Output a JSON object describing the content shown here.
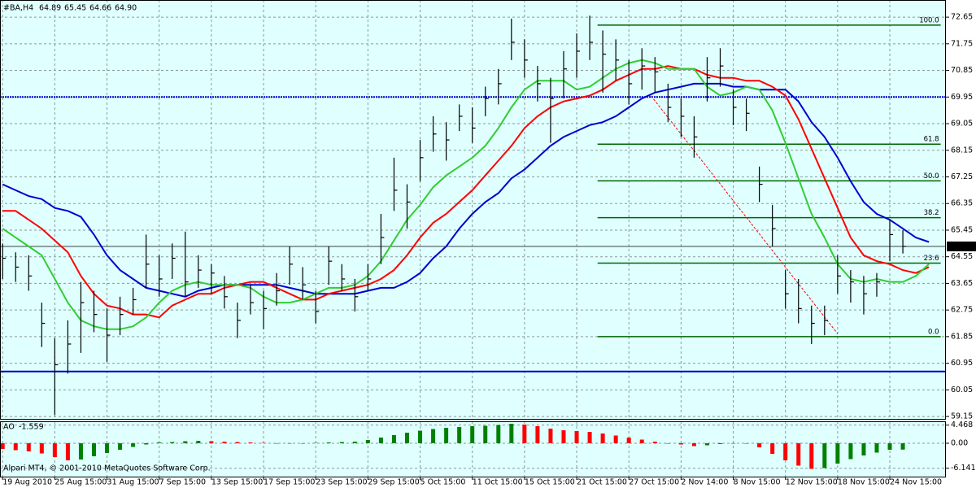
{
  "chart_data": [
    {
      "type": "ohlc",
      "title": "#BA,H4",
      "ohlc": [
        64.89,
        65.45,
        64.66,
        {
          "value": 64.9,
          "label": "64.90"
        }
      ],
      "background": "#e0ffff",
      "bar_color": "#000000",
      "grid": true,
      "xlim": [
        -0.2,
        72.3
      ],
      "ylim": [
        59.07,
        73.23
      ],
      "yticks": [
        59.15,
        60.05,
        60.95,
        61.85,
        62.75,
        63.65,
        64.55,
        65.45,
        66.35,
        67.25,
        68.15,
        69.05,
        69.95,
        70.85,
        71.75,
        72.65
      ],
      "high": [
        65.0,
        64.7,
        64.6,
        63.0,
        61.8,
        62.4,
        63.7,
        63.4,
        62.8,
        63.2,
        63.5,
        65.3,
        64.6,
        65.0,
        65.4,
        64.6,
        64.3,
        63.9,
        63.0,
        63.6,
        63.4,
        64.0,
        64.9,
        64.2,
        63.4,
        64.9,
        64.3,
        63.8,
        64.3,
        66.0,
        67.9,
        67.0,
        68.5,
        69.3,
        69.1,
        69.7,
        69.6,
        70.3,
        70.9,
        72.6,
        71.9,
        71.0,
        70.6,
        71.5,
        72.1,
        72.7,
        72.2,
        71.9,
        71.2,
        71.6,
        71.3,
        70.4,
        69.9,
        69.3,
        71.3,
        71.6,
        70.2,
        69.9,
        67.6,
        66.3,
        64.1,
        63.8,
        62.9,
        62.9,
        64.6,
        64.1,
        63.9,
        64.0,
        65.8,
        65.45,
        null,
        null
      ],
      "low": [
        63.8,
        63.7,
        63.4,
        61.5,
        59.2,
        60.6,
        61.3,
        62.0,
        61.0,
        61.9,
        62.6,
        63.5,
        63.2,
        63.8,
        63.2,
        63.5,
        63.3,
        62.8,
        61.8,
        62.6,
        62.1,
        62.9,
        63.6,
        63.1,
        62.3,
        63.6,
        63.4,
        62.7,
        63.4,
        64.3,
        66.1,
        65.5,
        67.1,
        68.1,
        67.8,
        68.8,
        68.4,
        69.3,
        69.7,
        71.2,
        70.6,
        69.8,
        68.4,
        69.9,
        70.6,
        71.2,
        70.1,
        70.5,
        69.7,
        70.2,
        70.1,
        69.1,
        68.6,
        67.9,
        69.8,
        70.3,
        69.0,
        68.8,
        66.4,
        64.9,
        62.8,
        62.3,
        61.6,
        61.9,
        63.3,
        63.0,
        62.6,
        63.2,
        64.4,
        64.66,
        null,
        null
      ],
      "close": [
        64.5,
        64.2,
        63.9,
        62.3,
        60.9,
        61.6,
        63.0,
        62.6,
        61.9,
        62.6,
        63.1,
        64.3,
        63.8,
        64.5,
        63.7,
        64.1,
        64.0,
        63.2,
        62.4,
        63.0,
        62.8,
        63.4,
        64.3,
        63.6,
        62.7,
        64.4,
        63.8,
        63.2,
        63.8,
        65.2,
        66.8,
        66.4,
        67.9,
        68.7,
        68.5,
        69.3,
        68.9,
        69.9,
        70.4,
        71.8,
        71.2,
        70.4,
        69.9,
        70.9,
        71.5,
        71.8,
        71.4,
        71.2,
        70.4,
        71.0,
        70.8,
        69.6,
        69.3,
        68.6,
        70.6,
        71.0,
        69.6,
        69.4,
        67.0,
        65.5,
        63.3,
        62.8,
        62.3,
        62.4,
        63.9,
        63.7,
        63.3,
        63.7,
        65.3,
        64.9,
        null,
        null
      ],
      "lines": [
        {
          "color": "#0000cd",
          "values": [
            67.0,
            66.8,
            66.6,
            66.5,
            66.2,
            66.1,
            65.9,
            65.3,
            64.6,
            64.1,
            63.8,
            63.5,
            63.4,
            63.3,
            63.2,
            63.4,
            63.5,
            63.6,
            63.6,
            63.6,
            63.6,
            63.6,
            63.5,
            63.4,
            63.3,
            63.3,
            63.3,
            63.3,
            63.4,
            63.5,
            63.5,
            63.7,
            64.0,
            64.5,
            64.9,
            65.5,
            66.0,
            66.4,
            66.7,
            67.2,
            67.5,
            67.9,
            68.3,
            68.6,
            68.8,
            69.0,
            69.1,
            69.3,
            69.6,
            69.9,
            70.1,
            70.2,
            70.3,
            70.4,
            70.4,
            70.4,
            70.3,
            70.3,
            70.2,
            70.2,
            70.2,
            69.8,
            69.1,
            68.6,
            67.9,
            67.1,
            66.4,
            66.0,
            65.8,
            65.5,
            65.2,
            65.05
          ]
        },
        {
          "color": "#ff0000",
          "values": [
            66.1,
            66.1,
            65.8,
            65.5,
            65.1,
            64.7,
            63.9,
            63.3,
            62.9,
            62.8,
            62.6,
            62.6,
            62.5,
            62.9,
            63.1,
            63.3,
            63.3,
            63.5,
            63.6,
            63.7,
            63.7,
            63.5,
            63.3,
            63.1,
            63.1,
            63.3,
            63.4,
            63.5,
            63.6,
            63.8,
            64.1,
            64.6,
            65.2,
            65.7,
            66.0,
            66.4,
            66.8,
            67.3,
            67.8,
            68.3,
            68.9,
            69.3,
            69.6,
            69.8,
            69.9,
            70.0,
            70.2,
            70.5,
            70.7,
            70.9,
            70.9,
            71.0,
            70.9,
            70.9,
            70.7,
            70.6,
            70.6,
            70.5,
            70.5,
            70.3,
            70.0,
            69.2,
            68.2,
            67.2,
            66.2,
            65.2,
            64.6,
            64.4,
            64.3,
            64.1,
            64.0,
            64.2
          ]
        },
        {
          "color": "#32cd32",
          "values": [
            65.5,
            65.2,
            64.9,
            64.6,
            63.8,
            63.0,
            62.4,
            62.2,
            62.1,
            62.1,
            62.2,
            62.5,
            63.0,
            63.4,
            63.6,
            63.7,
            63.6,
            63.6,
            63.6,
            63.5,
            63.2,
            63.0,
            63.0,
            63.1,
            63.3,
            63.5,
            63.5,
            63.6,
            63.9,
            64.4,
            65.1,
            65.8,
            66.3,
            66.9,
            67.3,
            67.6,
            67.9,
            68.3,
            68.9,
            69.6,
            70.2,
            70.5,
            70.5,
            70.5,
            70.2,
            70.3,
            70.6,
            70.9,
            71.1,
            71.2,
            71.1,
            70.9,
            70.9,
            70.9,
            70.3,
            70.0,
            70.1,
            70.3,
            70.2,
            69.5,
            68.4,
            67.2,
            66.0,
            65.2,
            64.3,
            63.8,
            63.7,
            63.8,
            63.7,
            63.7,
            63.9,
            64.3
          ]
        }
      ],
      "hlines": [
        {
          "value": 69.95,
          "color": "#0000cd",
          "style": "dotted"
        },
        {
          "value": 60.67,
          "color": "#0000cd",
          "style": "solid"
        }
      ],
      "trendline": {
        "x": [
          49.7,
          64.0
        ],
        "y": [
          69.99,
          61.95
        ],
        "color": "#ff0000"
      },
      "fibonacci": {
        "high": 72.38,
        "low": 61.85,
        "xlim": [
          45.6,
          71.9
        ],
        "color": "#006400",
        "levels": [
          {
            "value": 100,
            "label": "100.0"
          },
          {
            "value": 61.8,
            "label": "61.8"
          },
          {
            "value": 50,
            "label": "50.0"
          },
          {
            "value": 38.2,
            "label": "38.2"
          },
          {
            "value": 23.6,
            "label": "23.6"
          },
          {
            "value": 0,
            "label": "0.0"
          }
        ]
      },
      "price_label": {
        "value": 64.9,
        "label": "64.90"
      }
    },
    {
      "type": "bar",
      "title": "AO",
      "value": -1.559,
      "background": "#e0ffff",
      "up_color": "#008000",
      "down_color": "#ff0000",
      "grid": true,
      "footer": "Alpari MT4, © 2001-2010 MetaQuotes Software Corp.",
      "xlim": [
        -0.2,
        72.3
      ],
      "ylim": [
        -8.2,
        5.4
      ],
      "yticks": [
        4.468,
        {
          "value": 0,
          "label": "0.00"
        },
        -6.141
      ],
      "xticks": [
        {
          "value": 0,
          "label": "19 Aug 2010"
        },
        {
          "value": 4,
          "label": "25 Aug 15:00"
        },
        {
          "value": 8,
          "label": "31 Aug 15:00"
        },
        {
          "value": 12,
          "label": "7 Sep 15:00"
        },
        {
          "value": 16,
          "label": "13 Sep 15:00"
        },
        {
          "value": 20,
          "label": "17 Sep 15:00"
        },
        {
          "value": 24,
          "label": "23 Sep 15:00"
        },
        {
          "value": 28,
          "label": "29 Sep 15:00"
        },
        {
          "value": 32,
          "label": "5 Oct 15:00"
        },
        {
          "value": 36,
          "label": "11 Oct 15:00"
        },
        {
          "value": 40,
          "label": "15 Oct 15:00"
        },
        {
          "value": 44,
          "label": "21 Oct 15:00"
        },
        {
          "value": 48,
          "label": "27 Oct 15:00"
        },
        {
          "value": 52,
          "label": "2 Nov 14:00"
        },
        {
          "value": 56,
          "label": "8 Nov 15:00"
        },
        {
          "value": 60,
          "label": "12 Nov 15:00"
        },
        {
          "value": 64,
          "label": "18 Nov 15:00"
        },
        {
          "value": 68,
          "label": "24 Nov 15:00"
        }
      ],
      "values": [
        -1.4,
        -1.7,
        -2.0,
        -2.5,
        -3.4,
        -4.2,
        -4.0,
        -3.2,
        -2.4,
        -1.6,
        -0.9,
        -0.3,
        0.2,
        0.3,
        0.5,
        0.6,
        0.5,
        0.4,
        0.3,
        0.2,
        0.1,
        0.0,
        -0.1,
        0.0,
        0.1,
        0.2,
        0.3,
        0.4,
        0.8,
        1.4,
        2.0,
        2.6,
        3.1,
        3.5,
        3.8,
        4.0,
        4.2,
        4.3,
        4.5,
        4.8,
        4.6,
        4.2,
        3.6,
        3.2,
        3.0,
        2.8,
        2.4,
        1.9,
        1.4,
        0.9,
        0.4,
        0.0,
        -0.3,
        -0.7,
        -0.5,
        -0.2,
        -0.1,
        0.0,
        -1.0,
        -2.6,
        -4.2,
        -5.5,
        -6.3,
        -6.1,
        -5.0,
        -3.9,
        -3.0,
        -2.3,
        -1.6,
        -1.559,
        null,
        null
      ]
    }
  ]
}
